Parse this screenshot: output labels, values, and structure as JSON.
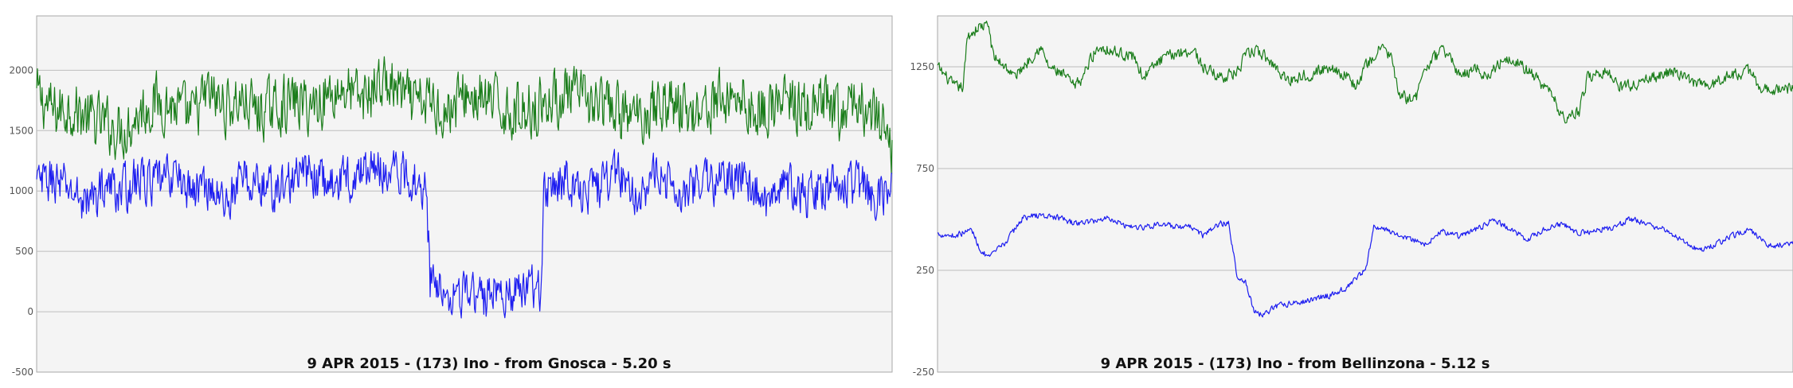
{
  "colors": {
    "background": "#f4f4f4",
    "grid": "#bdbdbd",
    "frame": "#a9a9a9",
    "green_series": "#1a7d1a",
    "blue_series": "#1d1df0"
  },
  "chart_data": [
    {
      "type": "line",
      "title": "9 APR 2015 - (173) Ino - from Gnosca - 5.20 s",
      "xlabel": "",
      "ylabel": "",
      "ylim": [
        -500,
        2450
      ],
      "yticks": [
        -500,
        0,
        500,
        1000,
        1500,
        2000
      ],
      "grid": true,
      "legend": "none",
      "x_range": [
        0,
        100
      ],
      "x_ticks_shown": false,
      "series": [
        {
          "color": "#1a7d1a",
          "points": [
            [
              0,
              1800
            ],
            [
              2,
              1650
            ],
            [
              4,
              1700
            ],
            [
              6,
              1600
            ],
            [
              8,
              1550
            ],
            [
              10,
              1500
            ],
            [
              12,
              1650
            ],
            [
              14,
              1750
            ],
            [
              16,
              1700
            ],
            [
              18,
              1600
            ],
            [
              20,
              1800
            ],
            [
              22,
              1700
            ],
            [
              24,
              1750
            ],
            [
              26,
              1650
            ],
            [
              28,
              1700
            ],
            [
              30,
              1750
            ],
            [
              32,
              1700
            ],
            [
              34,
              1800
            ],
            [
              36,
              1850
            ],
            [
              38,
              1750
            ],
            [
              40,
              1900
            ],
            [
              42,
              1850
            ],
            [
              44,
              1700
            ],
            [
              46,
              1750
            ],
            [
              48,
              1650
            ],
            [
              50,
              1800
            ],
            [
              52,
              1750
            ],
            [
              54,
              1700
            ],
            [
              56,
              1650
            ],
            [
              58,
              1700
            ],
            [
              60,
              1750
            ],
            [
              62,
              1800
            ],
            [
              64,
              1750
            ],
            [
              66,
              1700
            ],
            [
              68,
              1650
            ],
            [
              70,
              1600
            ],
            [
              72,
              1700
            ],
            [
              74,
              1750
            ],
            [
              76,
              1650
            ],
            [
              78,
              1700
            ],
            [
              80,
              1750
            ],
            [
              82,
              1800
            ],
            [
              84,
              1650
            ],
            [
              86,
              1700
            ],
            [
              88,
              1750
            ],
            [
              90,
              1650
            ],
            [
              92,
              1700
            ],
            [
              94,
              1600
            ],
            [
              96,
              1750
            ],
            [
              98,
              1600
            ],
            [
              100,
              1350
            ]
          ],
          "amplitude": 320
        },
        {
          "color": "#1d1df0",
          "points": [
            [
              0,
              1050
            ],
            [
              2,
              1100
            ],
            [
              4,
              1000
            ],
            [
              6,
              900
            ],
            [
              8,
              1050
            ],
            [
              10,
              1000
            ],
            [
              12,
              1100
            ],
            [
              14,
              1050
            ],
            [
              16,
              1150
            ],
            [
              18,
              1000
            ],
            [
              20,
              1050
            ],
            [
              22,
              900
            ],
            [
              24,
              1100
            ],
            [
              26,
              1050
            ],
            [
              28,
              1000
            ],
            [
              30,
              1100
            ],
            [
              32,
              1150
            ],
            [
              34,
              1050
            ],
            [
              36,
              1100
            ],
            [
              38,
              1150
            ],
            [
              40,
              1200
            ],
            [
              42,
              1150
            ],
            [
              44,
              1100
            ],
            [
              45.5,
              1050
            ],
            [
              46,
              250
            ],
            [
              48,
              200
            ],
            [
              50,
              150
            ],
            [
              52,
              100
            ],
            [
              54,
              200
            ],
            [
              56,
              150
            ],
            [
              58,
              200
            ],
            [
              59,
              150
            ],
            [
              59.3,
              1050
            ],
            [
              60,
              1050
            ],
            [
              62,
              1100
            ],
            [
              64,
              1000
            ],
            [
              66,
              1050
            ],
            [
              68,
              1150
            ],
            [
              70,
              1000
            ],
            [
              72,
              1100
            ],
            [
              74,
              1050
            ],
            [
              76,
              1000
            ],
            [
              78,
              1100
            ],
            [
              80,
              1050
            ],
            [
              82,
              1150
            ],
            [
              84,
              1000
            ],
            [
              86,
              900
            ],
            [
              88,
              1050
            ],
            [
              90,
              950
            ],
            [
              92,
              1050
            ],
            [
              94,
              1000
            ],
            [
              96,
              1050
            ],
            [
              98,
              950
            ],
            [
              100,
              1000
            ]
          ],
          "amplitude": 260
        }
      ]
    },
    {
      "type": "line",
      "title": "9 APR 2015 - (173) Ino - from Bellinzona - 5.12 s",
      "xlabel": "",
      "ylabel": "",
      "ylim": [
        -250,
        1500
      ],
      "yticks": [
        -250,
        250,
        750,
        1250
      ],
      "grid": true,
      "legend": "none",
      "x_range": [
        0,
        100
      ],
      "x_ticks_shown": false,
      "series": [
        {
          "color": "#1a7d1a",
          "points": [
            [
              0,
              1250
            ],
            [
              2,
              1150
            ],
            [
              3,
              1150
            ],
            [
              3.5,
              1400
            ],
            [
              5,
              1450
            ],
            [
              6,
              1450
            ],
            [
              6.5,
              1300
            ],
            [
              8,
              1250
            ],
            [
              9,
              1200
            ],
            [
              10,
              1250
            ],
            [
              11,
              1300
            ],
            [
              12,
              1350
            ],
            [
              13,
              1250
            ],
            [
              15,
              1200
            ],
            [
              16,
              1150
            ],
            [
              17,
              1200
            ],
            [
              18,
              1300
            ],
            [
              19,
              1350
            ],
            [
              21,
              1320
            ],
            [
              23,
              1300
            ],
            [
              24,
              1200
            ],
            [
              26,
              1280
            ],
            [
              28,
              1320
            ],
            [
              30,
              1330
            ],
            [
              31,
              1250
            ],
            [
              33,
              1200
            ],
            [
              35,
              1220
            ],
            [
              36,
              1300
            ],
            [
              37,
              1330
            ],
            [
              38,
              1310
            ],
            [
              40,
              1230
            ],
            [
              41,
              1180
            ],
            [
              42,
              1200
            ],
            [
              44,
              1220
            ],
            [
              46,
              1250
            ],
            [
              48,
              1200
            ],
            [
              49,
              1150
            ],
            [
              50,
              1250
            ],
            [
              52,
              1350
            ],
            [
              53,
              1300
            ],
            [
              54,
              1100
            ],
            [
              56,
              1100
            ],
            [
              57,
              1250
            ],
            [
              59,
              1330
            ],
            [
              60,
              1300
            ],
            [
              61,
              1200
            ],
            [
              63,
              1250
            ],
            [
              64,
              1200
            ],
            [
              66,
              1280
            ],
            [
              67,
              1300
            ],
            [
              69,
              1230
            ],
            [
              71,
              1150
            ],
            [
              72,
              1100
            ],
            [
              73,
              1000
            ],
            [
              75,
              1030
            ],
            [
              76,
              1200
            ],
            [
              78,
              1230
            ],
            [
              80,
              1150
            ],
            [
              82,
              1170
            ],
            [
              84,
              1200
            ],
            [
              86,
              1230
            ],
            [
              88,
              1180
            ],
            [
              90,
              1150
            ],
            [
              92,
              1200
            ],
            [
              94,
              1220
            ],
            [
              95,
              1230
            ],
            [
              96,
              1150
            ],
            [
              98,
              1140
            ],
            [
              100,
              1140
            ]
          ],
          "amplitude": 40
        },
        {
          "color": "#1d1df0",
          "points": [
            [
              0,
              430
            ],
            [
              2,
              420
            ],
            [
              4,
              450
            ],
            [
              5,
              350
            ],
            [
              6,
              310
            ],
            [
              8,
              390
            ],
            [
              9,
              450
            ],
            [
              10,
              510
            ],
            [
              12,
              520
            ],
            [
              14,
              510
            ],
            [
              16,
              480
            ],
            [
              18,
              490
            ],
            [
              20,
              510
            ],
            [
              22,
              470
            ],
            [
              24,
              460
            ],
            [
              26,
              480
            ],
            [
              28,
              460
            ],
            [
              30,
              460
            ],
            [
              31,
              420
            ],
            [
              33,
              480
            ],
            [
              34,
              480
            ],
            [
              35,
              230
            ],
            [
              36,
              190
            ],
            [
              37,
              50
            ],
            [
              38,
              30
            ],
            [
              40,
              80
            ],
            [
              42,
              90
            ],
            [
              44,
              110
            ],
            [
              46,
              130
            ],
            [
              48,
              170
            ],
            [
              50,
              250
            ],
            [
              51,
              460
            ],
            [
              53,
              440
            ],
            [
              55,
              410
            ],
            [
              57,
              380
            ],
            [
              59,
              440
            ],
            [
              61,
              420
            ],
            [
              63,
              450
            ],
            [
              65,
              500
            ],
            [
              67,
              450
            ],
            [
              69,
              400
            ],
            [
              71,
              450
            ],
            [
              73,
              480
            ],
            [
              75,
              430
            ],
            [
              77,
              450
            ],
            [
              79,
              460
            ],
            [
              81,
              500
            ],
            [
              83,
              480
            ],
            [
              85,
              450
            ],
            [
              87,
              400
            ],
            [
              89,
              350
            ],
            [
              91,
              380
            ],
            [
              93,
              420
            ],
            [
              95,
              450
            ],
            [
              97,
              370
            ],
            [
              100,
              380
            ]
          ],
          "amplitude": 20
        }
      ]
    }
  ]
}
